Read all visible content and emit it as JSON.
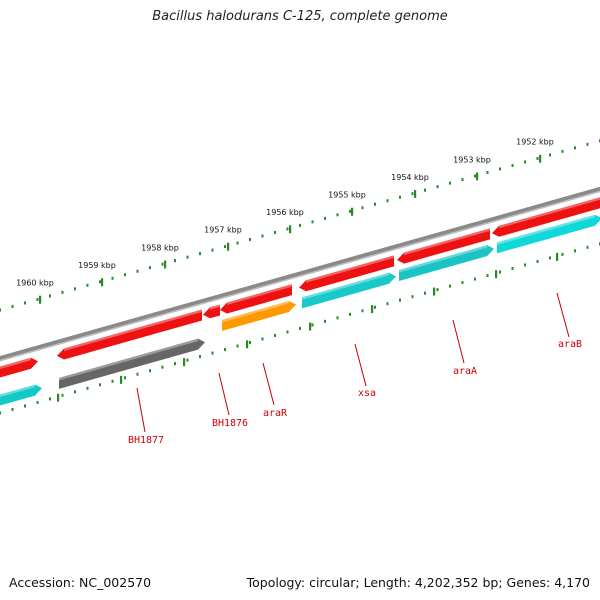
{
  "title": "Bacillus halodurans C-125, complete genome",
  "footer": {
    "accession": "Accession: NC_002570",
    "summary": "Topology: circular; Length: 4,202,352 bp; Genes: 4,170"
  },
  "colors": {
    "ruler": "#2a8a2a",
    "backbone": "#8a8a8a",
    "cds_red": "#ee1111",
    "cds_cyan": "#10d8d8",
    "cds_gray": "#666666",
    "cds_orange": "#ff9900",
    "label": "#cc0000"
  },
  "ruler_labels": [
    "1952 kbp",
    "1953 kbp",
    "1954 kbp",
    "1955 kbp",
    "1956 kbp",
    "1957 kbp",
    "1958 kbp",
    "1959 kbp",
    "1960 kbp"
  ],
  "gene_labels": [
    "araB",
    "araA",
    "xsa",
    "araR",
    "BH1876",
    "BH1877"
  ]
}
